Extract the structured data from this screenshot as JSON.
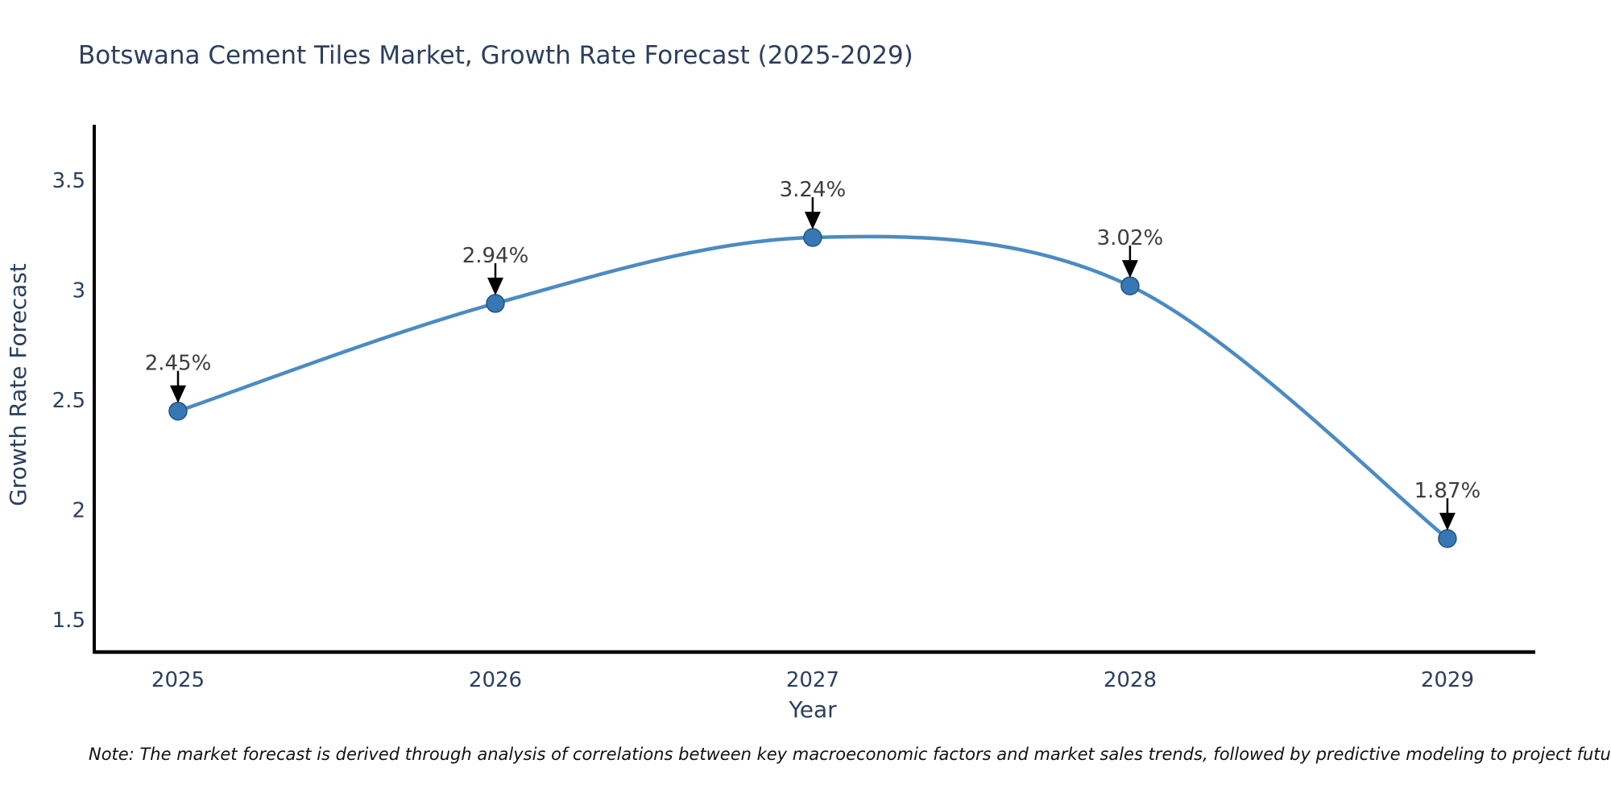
{
  "note": "Note: The market forecast is derived through analysis of correlations between key macroeconomic factors and market sales trends, followed by predictive modeling to project future sales",
  "chart_data": {
    "type": "line",
    "title": "Botswana Cement Tiles Market, Growth Rate Forecast (2025-2029)",
    "xlabel": "Year",
    "ylabel": "Growth Rate Forecast",
    "categories": [
      2025,
      2026,
      2027,
      2028,
      2029
    ],
    "values": [
      2.45,
      2.94,
      3.24,
      3.02,
      1.87
    ],
    "point_labels": [
      "2.45%",
      "2.94%",
      "3.24%",
      "3.02%",
      "1.87%"
    ],
    "xtick_labels": [
      "2025",
      "2026",
      "2027",
      "2028",
      "2029"
    ],
    "ytick_values": [
      1.5,
      2,
      2.5,
      3,
      3.5
    ],
    "ytick_labels": [
      "1.5",
      "2",
      "2.5",
      "3",
      "3.5"
    ],
    "xlim": [
      2024.736,
      2029.277
    ],
    "ylim": [
      1.361,
      3.753
    ],
    "line_shape": "spline",
    "grid": false,
    "legend": "none",
    "colors": {
      "line": "#4c8bc2",
      "marker_fill": "#3677b4",
      "marker_edge": "#24567e",
      "axis_line": "#000000",
      "axis_text": "#2a3f5f",
      "annotation_text": "#3d3d3d",
      "arrow": "#000000",
      "background": "#ffffff"
    }
  }
}
